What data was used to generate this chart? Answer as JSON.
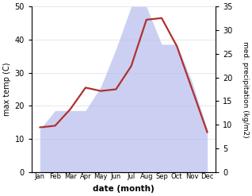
{
  "months": [
    "Jan",
    "Feb",
    "Mar",
    "Apr",
    "May",
    "Jun",
    "Jul",
    "Aug",
    "Sep",
    "Oct",
    "Nov",
    "Dec"
  ],
  "temp_max": [
    13.5,
    14.0,
    19.0,
    25.5,
    24.5,
    25.0,
    32.0,
    46.0,
    46.5,
    38.0,
    25.0,
    12.0
  ],
  "precip": [
    9,
    13,
    13,
    13,
    18,
    26,
    35,
    35,
    27,
    27,
    19,
    9
  ],
  "temp_ylim": [
    0,
    50
  ],
  "precip_ylim": [
    0,
    35
  ],
  "fill_color": "#b0b8ee",
  "fill_alpha": 0.65,
  "temp_color": "#b03030",
  "ylabel_left": "max temp (C)",
  "ylabel_right": "med. precipitation (kg/m2)",
  "xlabel": "date (month)",
  "temp_yticks": [
    0,
    10,
    20,
    30,
    40,
    50
  ],
  "precip_yticks": [
    0,
    5,
    10,
    15,
    20,
    25,
    30,
    35
  ],
  "linewidth": 1.6
}
